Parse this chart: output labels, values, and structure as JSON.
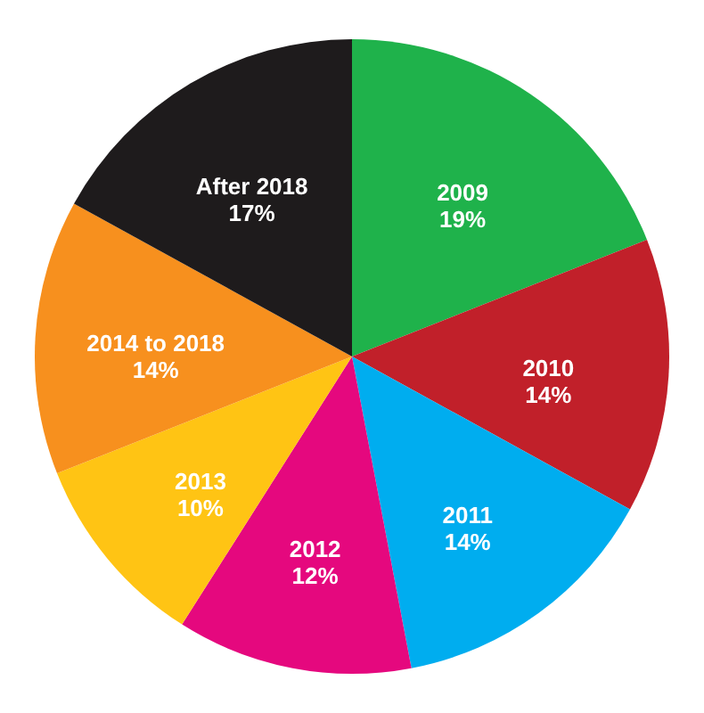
{
  "chart_data": {
    "type": "pie",
    "categories": [
      "2009",
      "2010",
      "2011",
      "2012",
      "2013",
      "2014 to 2018",
      "After 2018"
    ],
    "values": [
      19,
      14,
      14,
      12,
      10,
      14,
      17
    ],
    "value_labels": [
      "19%",
      "14%",
      "14%",
      "12%",
      "10%",
      "14%",
      "17%"
    ],
    "colors": [
      "#1fb24b",
      "#c1202a",
      "#00adef",
      "#e5087e",
      "#ffc414",
      "#f7901e",
      "#1e1b1c"
    ]
  }
}
